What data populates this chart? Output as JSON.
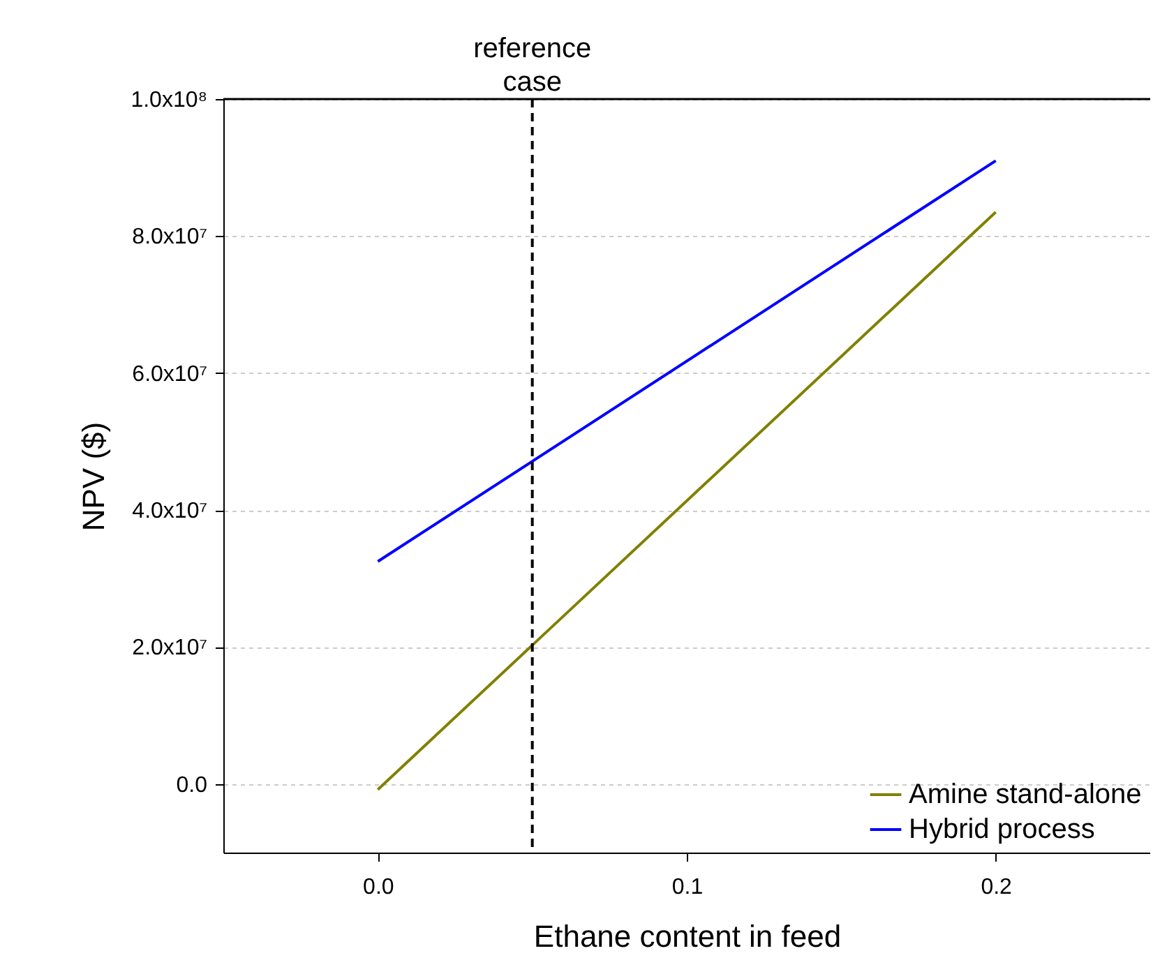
{
  "chart_data": {
    "type": "line",
    "xlabel": "Ethane content in feed",
    "ylabel": "NPV ($)",
    "x": [
      0,
      0.2
    ],
    "series": [
      {
        "name": "Amine stand-alone",
        "color": "#808000",
        "values": [
          -800000,
          83500000
        ]
      },
      {
        "name": "Hybrid process",
        "color": "#0000ff",
        "values": [
          32500000,
          91000000
        ]
      }
    ],
    "xlim": [
      -0.05,
      0.25
    ],
    "xticks": [
      {
        "value": 0,
        "label": "0.0"
      },
      0.1,
      0.2
    ],
    "ylim": [
      -10000000,
      100000000
    ],
    "yticks": [
      {
        "value": 0,
        "label": "0.0"
      },
      {
        "value": 20000000,
        "label": "2.0x10⁷"
      },
      {
        "value": 40000000,
        "label": "4.0x10⁷"
      },
      {
        "value": 60000000,
        "label": "6.0x10⁷"
      },
      {
        "value": 80000000,
        "label": "8.0x10⁷"
      },
      {
        "value": 100000000,
        "label": "1.0x10⁸"
      }
    ],
    "ref_lines": [
      {
        "axis": "x",
        "value": 0.05,
        "label": "reference case",
        "line_style": "dashed",
        "color": "#000000"
      }
    ],
    "grid": "y",
    "legend": "bottom right",
    "line_style": "solid",
    "marker": "none"
  }
}
